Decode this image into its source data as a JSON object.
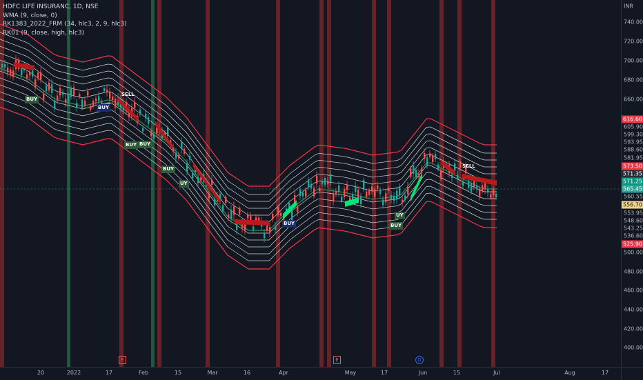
{
  "legend": {
    "line1": "HDFC LIFE INSURANC, 1D, NSE",
    "line2": "WMA (9, close, 0)",
    "line3": "RK1383_2022_FRM (34, hlc3, 2, 9, hlc3)",
    "line4": "RK01 (9, close, high, hlc3)"
  },
  "price_axis": {
    "currency": "INR",
    "ticks": [
      "740.00",
      "720.00",
      "700.00",
      "680.00",
      "660.00",
      "500.00",
      "480.00",
      "460.00",
      "440.00",
      "420.00",
      "400.00"
    ],
    "band_labels": [
      "605.90",
      "599.30",
      "593.95",
      "588.60",
      "581.95",
      "560.55",
      "553.95",
      "548.60",
      "543.25",
      "536.60"
    ],
    "badges": [
      {
        "text": "616.60",
        "color": "#f23645"
      },
      {
        "text": "573.50",
        "color": "#f23645"
      },
      {
        "text": "571.35",
        "color": "#2a2e39"
      },
      {
        "text": "571.25",
        "color": "#089981"
      },
      {
        "text": "565.45",
        "color": "#26a69a"
      },
      {
        "text": "556.70",
        "color": "#f0d58a"
      },
      {
        "text": "525.90",
        "color": "#f23645"
      }
    ]
  },
  "time_axis": [
    "20",
    "2022",
    "17",
    "Feb",
    "15",
    "Mar",
    "16",
    "Apr",
    "May",
    "17",
    "Jun",
    "15",
    "Jul",
    "Aug",
    "17"
  ],
  "signals": {
    "buy": "BUY",
    "sell": "SELL",
    "uy": "UY"
  },
  "markers": {
    "earnings": "E",
    "dividend": "D"
  },
  "colors": {
    "background": "#131722",
    "candle_up": "#26a69a",
    "candle_down": "#ef5350",
    "band_outer": "#f23645",
    "band_inner": "#ffffff",
    "wma": "#2e8b57",
    "signal_green": "#00e676",
    "signal_red": "#b71c1c"
  }
}
